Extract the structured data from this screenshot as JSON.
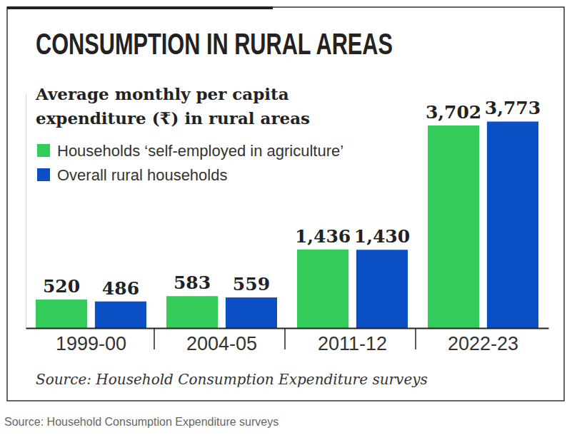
{
  "chart_data": {
    "type": "bar",
    "title": "CONSUMPTION IN RURAL AREAS",
    "subtitle": [
      "Average monthly per capita",
      "expenditure (₹) in rural areas"
    ],
    "source": "Source: Household Consumption Expenditure surveys",
    "caption": "Source: Household Consumption Expenditure surveys",
    "categories": [
      "1999-00",
      "2004-05",
      "2011-12",
      "2022-23"
    ],
    "series": [
      {
        "name": "Households ‘self-employed in agriculture’",
        "color": "#33cc5a",
        "values": [
          520,
          583,
          1436,
          3702
        ],
        "value_labels": [
          "520",
          "583",
          "1,436",
          "3,702"
        ]
      },
      {
        "name": "Overall rural households",
        "color": "#0b4fc4",
        "values": [
          486,
          559,
          1430,
          3773
        ],
        "value_labels": [
          "486",
          "559",
          "1,430",
          "3,773"
        ]
      }
    ],
    "ylim": [
      0,
      4300
    ],
    "yticks": [],
    "tick_labels": "x",
    "grid": false,
    "legend": "top-left",
    "data_labels": true
  }
}
